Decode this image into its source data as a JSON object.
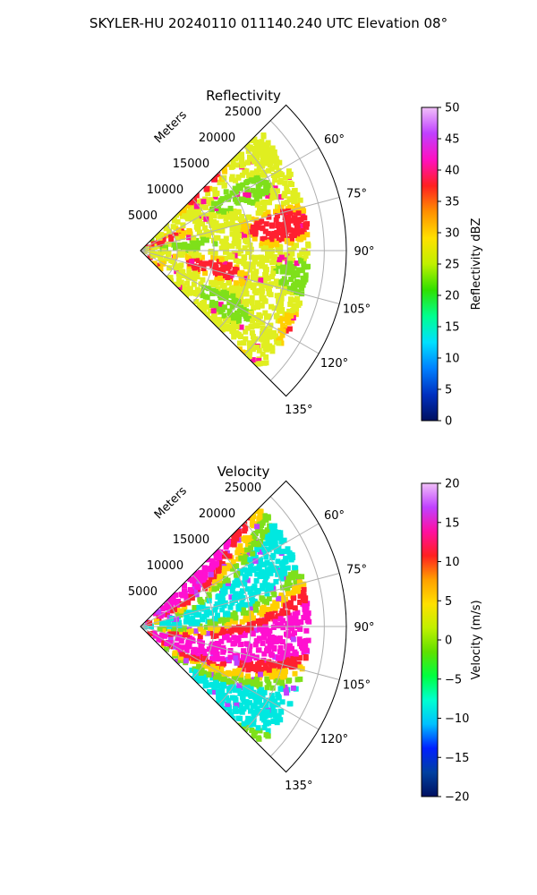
{
  "figure": {
    "title": "SKYLER-HU  20240110  011140.240 UTC Elevation 08°"
  },
  "chart_data": [
    {
      "type": "heatmap",
      "title": "Reflectivity",
      "projection": "polar-sector",
      "radial_label": "Meters",
      "r_ticks": [
        5000,
        10000,
        15000,
        20000,
        25000
      ],
      "r_tick_labels": [
        "5000",
        "10000",
        "15000",
        "20000",
        "25000"
      ],
      "theta_ticks_deg": [
        60,
        75,
        90,
        105,
        120,
        135
      ],
      "theta_tick_labels": [
        "60°",
        "75°",
        "90°",
        "105°",
        "120°",
        "135°"
      ],
      "theta_range_deg": [
        45,
        135
      ],
      "r_max": 28000,
      "grid": true,
      "colorbar": {
        "label": "Reflectivity dBZ",
        "range": [
          0,
          50
        ],
        "ticks": [
          0,
          5,
          10,
          15,
          20,
          25,
          30,
          35,
          40,
          45,
          50
        ],
        "tick_labels": [
          "0",
          "5",
          "10",
          "15",
          "20",
          "25",
          "30",
          "35",
          "40",
          "45",
          "50"
        ],
        "stops": [
          "#001060",
          "#0030c0",
          "#0080ff",
          "#00e0ff",
          "#00ff90",
          "#30e000",
          "#c0f000",
          "#ffe000",
          "#ff9000",
          "#ff2020",
          "#ff10c0",
          "#c040ff",
          "#f0c0f8"
        ]
      },
      "field_colors": [
        "#e0ee20",
        "#7ee01a",
        "#ffd000",
        "#ff2030",
        "#ff10a0"
      ]
    },
    {
      "type": "heatmap",
      "title": "Velocity",
      "projection": "polar-sector",
      "radial_label": "Meters",
      "r_ticks": [
        5000,
        10000,
        15000,
        20000,
        25000
      ],
      "r_tick_labels": [
        "5000",
        "10000",
        "15000",
        "20000",
        "25000"
      ],
      "theta_ticks_deg": [
        60,
        75,
        90,
        105,
        120,
        135
      ],
      "theta_tick_labels": [
        "60°",
        "75°",
        "90°",
        "105°",
        "120°",
        "135°"
      ],
      "theta_range_deg": [
        45,
        135
      ],
      "r_max": 28000,
      "grid": true,
      "colorbar": {
        "label": "Velocity (m/s)",
        "range": [
          -20,
          20
        ],
        "ticks": [
          -20,
          -15,
          -10,
          -5,
          0,
          5,
          10,
          15,
          20
        ],
        "tick_labels": [
          "−20",
          "−15",
          "−10",
          "−5",
          "0",
          "5",
          "10",
          "15",
          "20"
        ],
        "stops": [
          "#001060",
          "#0040a0",
          "#0020ff",
          "#00c0ff",
          "#00ffd0",
          "#00ff40",
          "#60e000",
          "#c0f000",
          "#ffe000",
          "#ffa000",
          "#ff2020",
          "#ff10a0",
          "#c040ff",
          "#f0c0f8"
        ]
      },
      "field_colors": [
        "#ff10d0",
        "#ff2030",
        "#ffd000",
        "#7ee01a",
        "#00e8e0",
        "#c040ff"
      ]
    }
  ]
}
